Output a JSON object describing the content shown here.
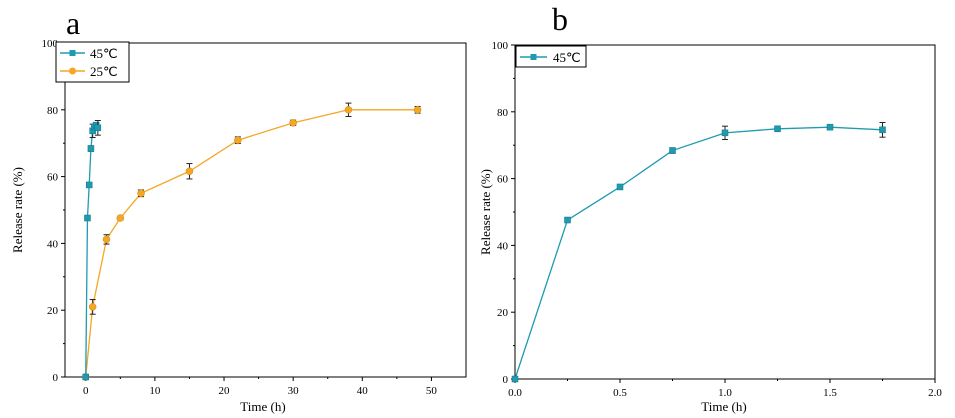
{
  "colors": {
    "teal": "#1e9bb0",
    "orange": "#f5a623"
  },
  "chart_data": [
    {
      "panel_label": "a",
      "type": "line",
      "xlabel": "Time (h)",
      "ylabel": "Release rate (%)",
      "xlim": [
        -3,
        55
      ],
      "ylim": [
        0,
        100
      ],
      "xticks": [
        0,
        10,
        20,
        30,
        40,
        50
      ],
      "yticks": [
        0,
        20,
        40,
        60,
        80,
        100
      ],
      "legend_position": "top-left",
      "series": [
        {
          "name": "45℃",
          "color": "#1e9bb0",
          "marker": "square",
          "x": [
            0,
            0.25,
            0.5,
            0.75,
            1.0,
            1.25,
            1.5,
            1.75
          ],
          "y": [
            0,
            47.6,
            57.5,
            68.4,
            73.7,
            74.9,
            75.4,
            74.6
          ],
          "err": [
            0.5,
            0.6,
            0.6,
            0.8,
            2.0,
            0.8,
            0.6,
            2.2
          ]
        },
        {
          "name": "25℃",
          "color": "#f5a623",
          "marker": "circle",
          "x": [
            0,
            1,
            3,
            5,
            8,
            15,
            22,
            30,
            38,
            48
          ],
          "y": [
            0,
            21,
            41.2,
            47.6,
            55,
            61.6,
            70.9,
            76.1,
            80,
            80
          ],
          "err": [
            0.5,
            2.2,
            1.4,
            0.6,
            1.0,
            2.3,
            1.0,
            0.8,
            2.0,
            1.0
          ]
        }
      ]
    },
    {
      "panel_label": "b",
      "type": "line",
      "xlabel": "Time (h)",
      "ylabel": "Release rate (%)",
      "xlim": [
        0,
        2.0
      ],
      "ylim": [
        0,
        100
      ],
      "xticks": [
        0.0,
        0.5,
        1.0,
        1.5,
        2.0
      ],
      "xtick_labels": [
        "0.0",
        "0.5",
        "1.0",
        "1.5",
        "2.0"
      ],
      "yticks": [
        0,
        20,
        40,
        60,
        80,
        100
      ],
      "legend_position": "top-left",
      "series": [
        {
          "name": "45℃",
          "color": "#1e9bb0",
          "marker": "square",
          "x": [
            0,
            0.25,
            0.5,
            0.75,
            1.0,
            1.25,
            1.5,
            1.75
          ],
          "y": [
            0,
            47.6,
            57.5,
            68.4,
            73.7,
            74.9,
            75.4,
            74.6
          ],
          "err": [
            0.5,
            0.6,
            0.6,
            0.8,
            2.0,
            0.8,
            0.6,
            2.2
          ]
        }
      ]
    }
  ]
}
